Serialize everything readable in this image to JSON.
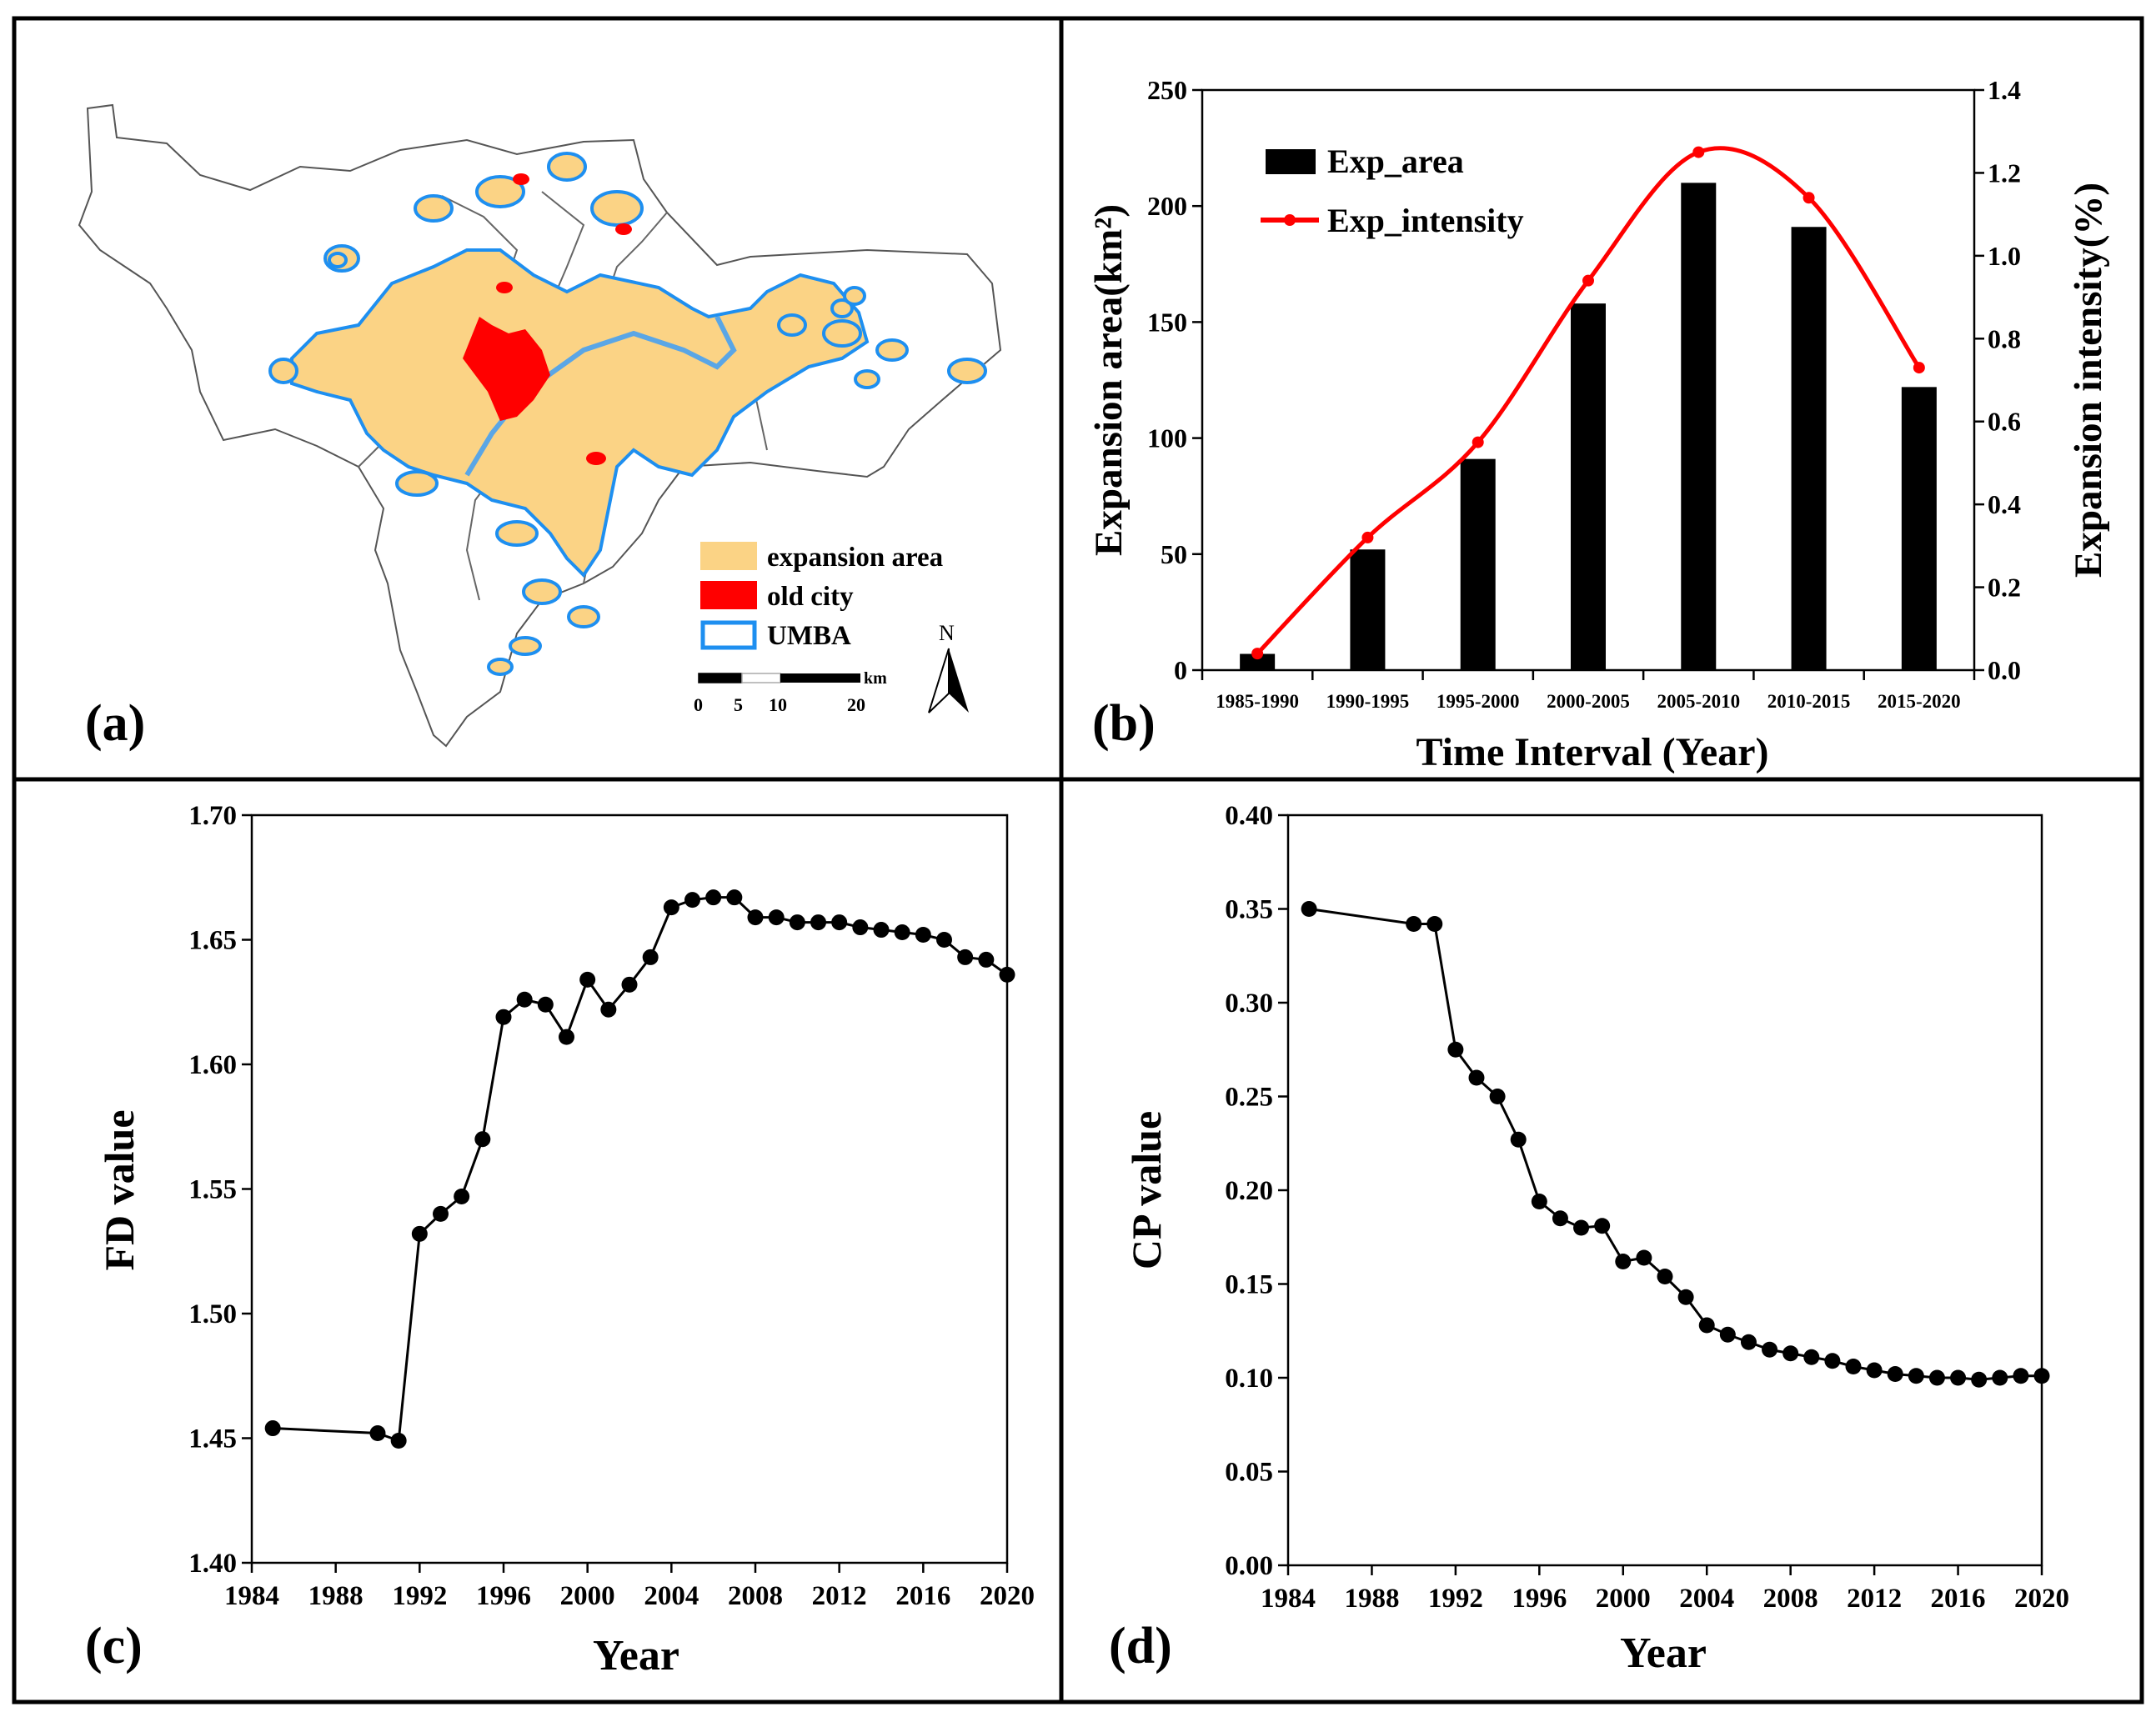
{
  "panels": {
    "a": {
      "tag": "(a)",
      "legend": [
        {
          "label": "expansion area",
          "color": "#fbd385"
        },
        {
          "label": "old city",
          "color": "#ff0000"
        },
        {
          "label": "UMBA",
          "color": "#1e8ff0"
        }
      ],
      "scalebar": {
        "unit": "km",
        "ticks": [
          "0",
          "5",
          "10",
          "20"
        ]
      },
      "north": "N"
    },
    "b": {
      "tag": "(b)"
    },
    "c": {
      "tag": "(c)"
    },
    "d": {
      "tag": "(d)"
    }
  },
  "chart_data": [
    {
      "panel": "b",
      "type": "bar",
      "categories": [
        "1985-1990",
        "1990-1995",
        "1995-2000",
        "2000-2005",
        "2005-2010",
        "2010-2015",
        "2015-2020"
      ],
      "series": [
        {
          "name": "Exp_area",
          "type": "bar",
          "axis": "left",
          "color": "#000000",
          "values": [
            7,
            52,
            91,
            158,
            210,
            191,
            122
          ]
        },
        {
          "name": "Exp_intensity",
          "type": "line",
          "axis": "right",
          "color": "#ff0000",
          "values": [
            0.04,
            0.32,
            0.55,
            0.94,
            1.25,
            1.14,
            0.73
          ]
        }
      ],
      "xlabel": "Time Interval (Year)",
      "ylabel": "Expansion area(km²)",
      "y2label": "Expansion intensity(%)",
      "ylim": [
        0,
        250
      ],
      "yticks": [
        "0",
        "50",
        "100",
        "150",
        "200",
        "250"
      ],
      "y2lim": [
        0,
        1.4
      ],
      "y2ticks": [
        "0.0",
        "0.2",
        "0.4",
        "0.6",
        "0.8",
        "1.0",
        "1.2",
        "1.4"
      ],
      "legend": "top-left",
      "grid": false
    },
    {
      "panel": "c",
      "type": "line",
      "xlabel": "Year",
      "ylabel": "FD value",
      "xlim": [
        1984,
        2020
      ],
      "xticks": [
        "1984",
        "1988",
        "1992",
        "1996",
        "2000",
        "2004",
        "2008",
        "2012",
        "2016",
        "2020"
      ],
      "ylim": [
        1.4,
        1.7
      ],
      "yticks": [
        "1.40",
        "1.45",
        "1.50",
        "1.55",
        "1.60",
        "1.65",
        "1.70"
      ],
      "x": [
        1985,
        1990,
        1991,
        1992,
        1993,
        1994,
        1995,
        1996,
        1997,
        1998,
        1999,
        2000,
        2001,
        2002,
        2003,
        2004,
        2005,
        2006,
        2007,
        2008,
        2009,
        2010,
        2011,
        2012,
        2013,
        2014,
        2015,
        2016,
        2017,
        2018,
        2019,
        2020
      ],
      "y": [
        1.454,
        1.452,
        1.449,
        1.532,
        1.54,
        1.547,
        1.57,
        1.619,
        1.626,
        1.624,
        1.611,
        1.634,
        1.622,
        1.632,
        1.643,
        1.663,
        1.666,
        1.667,
        1.667,
        1.659,
        1.659,
        1.657,
        1.657,
        1.657,
        1.655,
        1.654,
        1.653,
        1.652,
        1.65,
        1.643,
        1.642,
        1.636
      ],
      "grid": false
    },
    {
      "panel": "d",
      "type": "line",
      "xlabel": "Year",
      "ylabel": "CP value",
      "xlim": [
        1984,
        2020
      ],
      "xticks": [
        "1984",
        "1988",
        "1992",
        "1996",
        "2000",
        "2004",
        "2008",
        "2012",
        "2016",
        "2020"
      ],
      "ylim": [
        0,
        0.4
      ],
      "yticks": [
        "0.00",
        "0.05",
        "0.10",
        "0.15",
        "0.20",
        "0.25",
        "0.30",
        "0.35",
        "0.40"
      ],
      "x": [
        1985,
        1990,
        1991,
        1992,
        1993,
        1994,
        1995,
        1996,
        1997,
        1998,
        1999,
        2000,
        2001,
        2002,
        2003,
        2004,
        2005,
        2006,
        2007,
        2008,
        2009,
        2010,
        2011,
        2012,
        2013,
        2014,
        2015,
        2016,
        2017,
        2018,
        2019,
        2020
      ],
      "y": [
        0.35,
        0.342,
        0.342,
        0.275,
        0.26,
        0.25,
        0.227,
        0.194,
        0.185,
        0.18,
        0.181,
        0.162,
        0.164,
        0.154,
        0.143,
        0.128,
        0.123,
        0.119,
        0.115,
        0.113,
        0.111,
        0.109,
        0.106,
        0.104,
        0.102,
        0.101,
        0.1,
        0.1,
        0.099,
        0.1,
        0.101,
        0.101
      ],
      "grid": false
    }
  ]
}
